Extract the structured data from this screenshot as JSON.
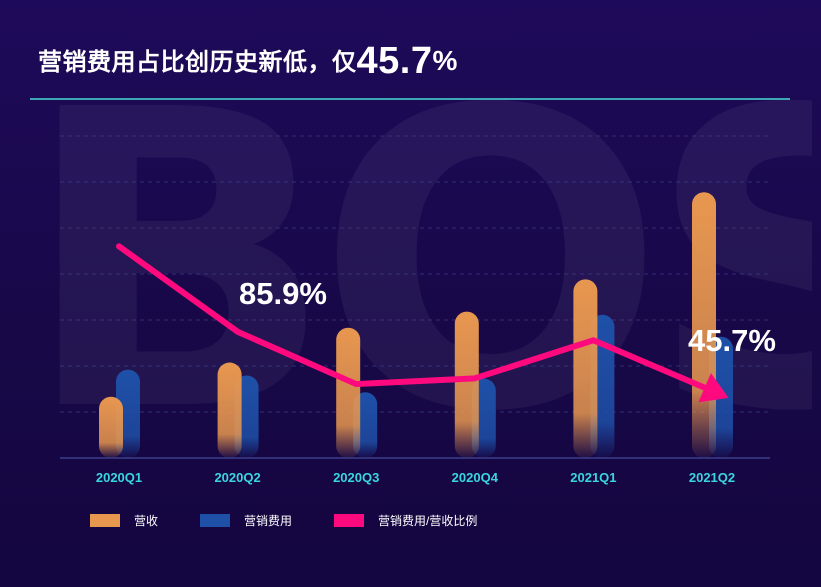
{
  "header": {
    "title_prefix": "营销费用占比创历史新低，仅",
    "title_value": "45.7",
    "title_unit": "%"
  },
  "watermark": {
    "text": "BOSS"
  },
  "colors": {
    "revenue": "#e8974f",
    "marketing": "#1e50a8",
    "ratio": "#ff0a7e",
    "category_label": "#3ad6e0"
  },
  "chart_data": {
    "type": "bar",
    "categories": [
      "2020Q1",
      "2020Q2",
      "2020Q3",
      "2020Q4",
      "2021Q1",
      "2021Q2"
    ],
    "series": [
      {
        "name": "营收",
        "type": "bar",
        "values": [
          9.5,
          14.8,
          20.2,
          22.7,
          27.7,
          41.2
        ]
      },
      {
        "name": "营销费用",
        "type": "bar",
        "values": [
          13.7,
          12.8,
          10.2,
          12.3,
          22.2,
          18.8
        ]
      },
      {
        "name": "营销费用/营收比例",
        "type": "line",
        "values": [
          144,
          85.9,
          50.3,
          54.2,
          80.1,
          45.7
        ]
      }
    ],
    "annotations": [
      {
        "category": "2020Q2",
        "text": "85.9%"
      },
      {
        "category": "2021Q2",
        "text": "45.7%"
      }
    ],
    "legend_position": "bottom-left",
    "grid": true
  }
}
